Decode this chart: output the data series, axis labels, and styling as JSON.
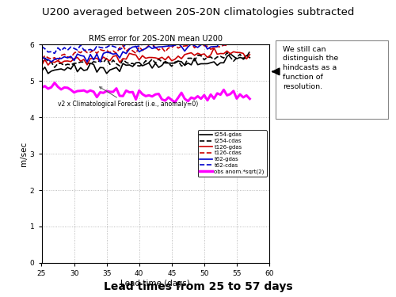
{
  "title_main": "U200 averaged between 20S-20N climatologies subtracted",
  "chart_title": "RMS error for 20S-20N mean U200",
  "xlabel": "Lead time (days)",
  "ylabel": "m/sec",
  "subtitle_bottom": "Lead times from 25 to 57 days",
  "xlim": [
    25,
    60
  ],
  "ylim": [
    0,
    6
  ],
  "yticks": [
    0,
    1,
    2,
    3,
    4,
    5,
    6
  ],
  "xticks": [
    25,
    30,
    35,
    40,
    45,
    50,
    55,
    60
  ],
  "textbox_text": "We still can\ndistinguish the\nhindcasts as a\nfunction of\nresolution.",
  "annotation_text": "v2 x Climatological Forecast (i.e., anomaly=0)",
  "legend_labels": [
    "t254-gdas",
    "t254-cdas",
    "t126-gdas",
    "t126-cdas",
    "t62-gdas",
    "t62-cdas",
    "obs anom.*sqrt(2)"
  ],
  "legend_colors": [
    "#000000",
    "#000000",
    "#cc0000",
    "#cc0000",
    "#0000cc",
    "#0000cc",
    "#ff00ff"
  ],
  "legend_linestyles": [
    "solid",
    "dashed",
    "solid",
    "dashed",
    "solid",
    "dashed",
    "solid"
  ],
  "legend_linewidths": [
    1.2,
    1.2,
    1.2,
    1.2,
    1.2,
    1.2,
    2.5
  ],
  "series": [
    {
      "key": "t254_gdas",
      "color": "#000000",
      "linestyle": "solid",
      "lw": 1.2,
      "base": 5.3,
      "trend": 0.005,
      "seed": 10
    },
    {
      "key": "t254_cdas",
      "color": "#000000",
      "linestyle": "dashed",
      "lw": 1.2,
      "base": 5.5,
      "trend": 0.006,
      "seed": 20
    },
    {
      "key": "t126_gdas",
      "color": "#cc0000",
      "linestyle": "solid",
      "lw": 1.2,
      "base": 5.5,
      "trend": 0.01,
      "seed": 30
    },
    {
      "key": "t126_cdas",
      "color": "#cc0000",
      "linestyle": "dashed",
      "lw": 1.2,
      "base": 5.65,
      "trend": 0.012,
      "seed": 40
    },
    {
      "key": "t62_gdas",
      "color": "#0000cc",
      "linestyle": "solid",
      "lw": 1.2,
      "base": 5.6,
      "trend": 0.011,
      "seed": 50
    },
    {
      "key": "t62_cdas",
      "color": "#0000cc",
      "linestyle": "dashed",
      "lw": 1.2,
      "base": 5.8,
      "trend": 0.013,
      "seed": 60
    },
    {
      "key": "obs_anom",
      "color": "#ff00ff",
      "linestyle": "solid",
      "lw": 2.2,
      "base": 4.85,
      "trend": -0.003,
      "seed": 70
    }
  ],
  "x_start": 25,
  "x_end": 57,
  "n_points": 65
}
